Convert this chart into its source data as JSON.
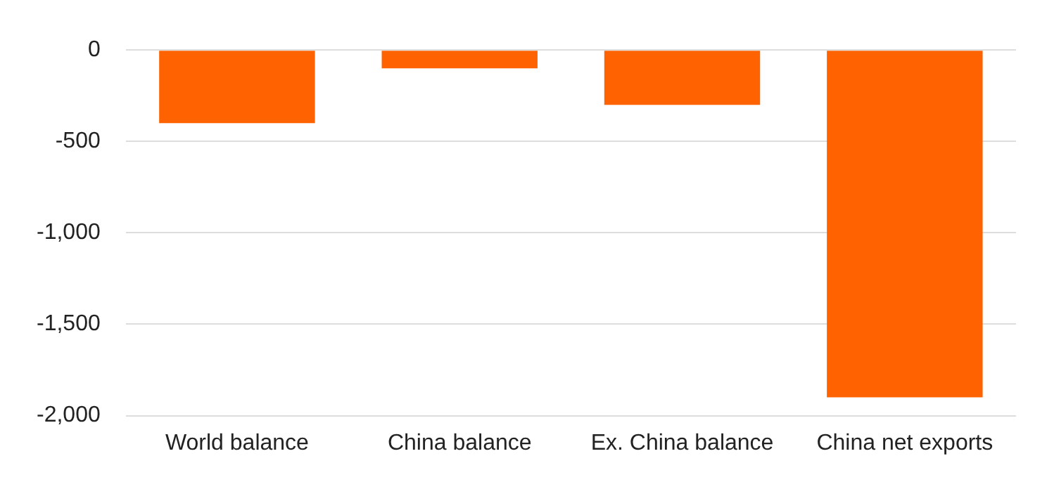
{
  "chart_data": {
    "type": "bar",
    "categories": [
      "World balance",
      "China balance",
      "Ex. China balance",
      "China net exports"
    ],
    "values": [
      -400,
      -100,
      -300,
      -1900
    ],
    "color": "#ff6200",
    "ylim": [
      -2000,
      0
    ],
    "yticks": [
      {
        "value": 0,
        "label": "0"
      },
      {
        "value": -500,
        "label": "-500"
      },
      {
        "value": -1000,
        "label": "-1,000"
      },
      {
        "value": -1500,
        "label": "-1,500"
      },
      {
        "value": -2000,
        "label": "-2,000"
      }
    ],
    "grid": "y",
    "legend": false
  }
}
